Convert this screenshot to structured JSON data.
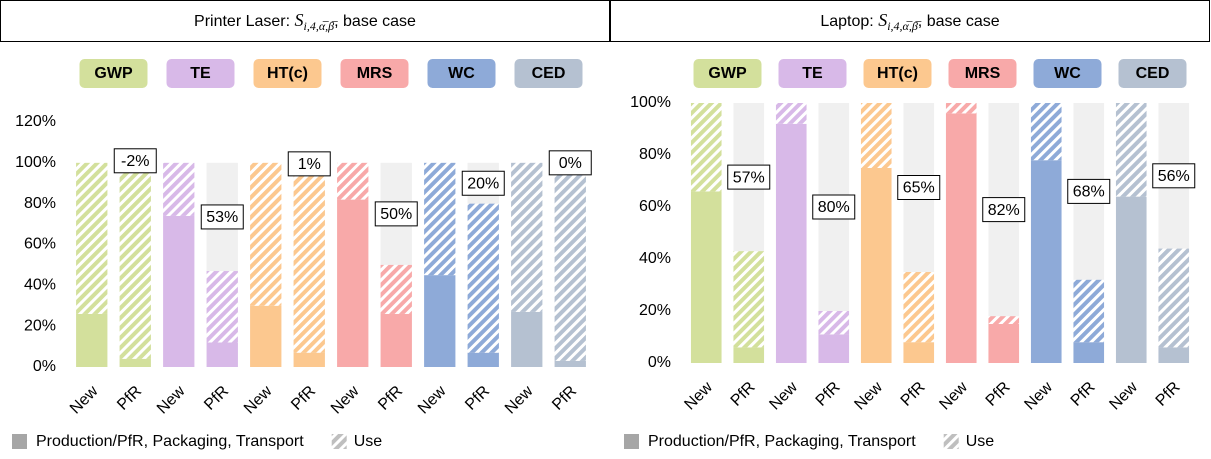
{
  "chart_data": [
    {
      "type": "stacked_bar",
      "title": {
        "text": "Printer Laser: ",
        "symbol": "S",
        "subscript": "i,4,α̅,β̅",
        "suffix": ", base case"
      },
      "groups": [
        {
          "name": "GWP",
          "color": "#d3e09c"
        },
        {
          "name": "TE",
          "color": "#d8b9e8"
        },
        {
          "name": "HT(c)",
          "color": "#fcc88f"
        },
        {
          "name": "MRS",
          "color": "#f8a9a9"
        },
        {
          "name": "WC",
          "color": "#8eaad8"
        },
        {
          "name": "CED",
          "color": "#b5c1d1"
        }
      ],
      "categories": [
        "New",
        "PfR",
        "New",
        "PfR",
        "New",
        "PfR",
        "New",
        "PfR",
        "New",
        "PfR",
        "New",
        "PfR"
      ],
      "series": [
        {
          "name": "Production/PfR, Packaging, Transport",
          "color": "#a6a6a6",
          "values": [
            26,
            4,
            74,
            12,
            30,
            7,
            82,
            26,
            45,
            7,
            27,
            3
          ]
        },
        {
          "name": "Use",
          "color": "#bfbfbf",
          "values": [
            74,
            98,
            26,
            35,
            70,
            92,
            18,
            24,
            55,
            73,
            73,
            97
          ]
        }
      ],
      "annotations": {
        "values": [
          -2,
          53,
          1,
          50,
          20,
          0
        ],
        "value_labels": [
          "-2%",
          "53%",
          "1%",
          "50%",
          "20%",
          "0%"
        ],
        "negative_color": "#c00000",
        "color": "#000000"
      },
      "ylim": [
        0,
        120
      ],
      "yticks": [
        {
          "value": 0,
          "label": "0%"
        },
        {
          "value": 20,
          "label": "20%"
        },
        {
          "value": 40,
          "label": "40%"
        },
        {
          "value": 60,
          "label": "60%"
        },
        {
          "value": 80,
          "label": "80%"
        },
        {
          "value": 100,
          "label": "100%"
        },
        {
          "value": 120,
          "label": "120%"
        }
      ],
      "grid": false
    },
    {
      "type": "stacked_bar",
      "title": {
        "text": "Laptop: ",
        "symbol": "S",
        "subscript": "i,4,α̅,β̅",
        "suffix": ", base case"
      },
      "groups": [
        {
          "name": "GWP",
          "color": "#d3e09c"
        },
        {
          "name": "TE",
          "color": "#d8b9e8"
        },
        {
          "name": "HT(c)",
          "color": "#fcc88f"
        },
        {
          "name": "MRS",
          "color": "#f8a9a9"
        },
        {
          "name": "WC",
          "color": "#8eaad8"
        },
        {
          "name": "CED",
          "color": "#b5c1d1"
        }
      ],
      "categories": [
        "New",
        "PfR",
        "New",
        "PfR",
        "New",
        "PfR",
        "New",
        "PfR",
        "New",
        "PfR",
        "New",
        "PfR"
      ],
      "series": [
        {
          "name": "Production/PfR, Packaging, Transport",
          "color": "#a6a6a6",
          "values": [
            66,
            6,
            92,
            11,
            75,
            8,
            96,
            15,
            78,
            8,
            64,
            6
          ]
        },
        {
          "name": "Use",
          "color": "#bfbfbf",
          "values": [
            34,
            37,
            8,
            9,
            25,
            27,
            4,
            3,
            22,
            24,
            36,
            38
          ]
        }
      ],
      "annotations": {
        "values": [
          57,
          80,
          65,
          82,
          68,
          56
        ],
        "value_labels": [
          "57%",
          "80%",
          "65%",
          "82%",
          "68%",
          "56%"
        ],
        "negative_color": "#c00000",
        "color": "#000000"
      },
      "ylim": [
        0,
        100
      ],
      "yticks": [
        {
          "value": 0,
          "label": "0%"
        },
        {
          "value": 20,
          "label": "20%"
        },
        {
          "value": 40,
          "label": "40%"
        },
        {
          "value": 60,
          "label": "60%"
        },
        {
          "value": 80,
          "label": "80%"
        },
        {
          "value": 100,
          "label": "100%"
        }
      ],
      "grid": false
    }
  ]
}
